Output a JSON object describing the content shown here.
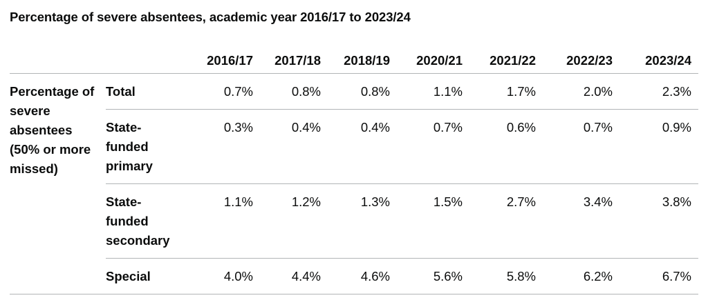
{
  "title": "Percentage of severe absentees, academic year 2016/17 to 2023/24",
  "table": {
    "columns": [
      "2016/17",
      "2017/18",
      "2018/19",
      "2020/21",
      "2021/22",
      "2022/23",
      "2023/24"
    ],
    "group_label": "Percentage of severe absentees (50% or more missed)",
    "rows": [
      {
        "label": "Total",
        "values": [
          "0.7%",
          "0.8%",
          "0.8%",
          "1.1%",
          "1.7%",
          "2.0%",
          "2.3%"
        ]
      },
      {
        "label": "State-funded primary",
        "values": [
          "0.3%",
          "0.4%",
          "0.4%",
          "0.7%",
          "0.6%",
          "0.7%",
          "0.9%"
        ]
      },
      {
        "label": "State-funded secondary",
        "values": [
          "1.1%",
          "1.2%",
          "1.3%",
          "1.5%",
          "2.7%",
          "3.4%",
          "3.8%"
        ]
      },
      {
        "label": "Special",
        "values": [
          "4.0%",
          "4.4%",
          "4.6%",
          "5.6%",
          "5.8%",
          "6.2%",
          "6.7%"
        ]
      }
    ]
  }
}
